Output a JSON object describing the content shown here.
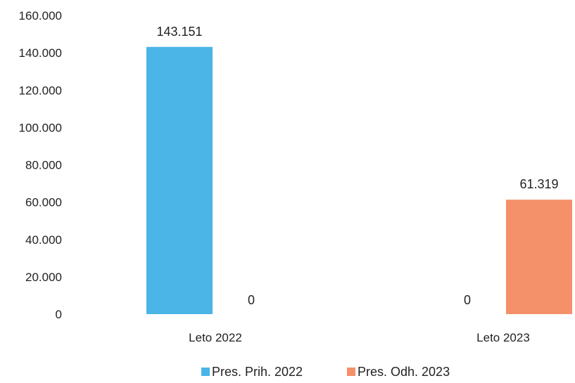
{
  "chart_data": {
    "type": "bar",
    "categories": [
      "Leto 2022",
      "Leto 2023"
    ],
    "series": [
      {
        "name": "Pres. Prih. 2022",
        "values": [
          143151,
          0
        ],
        "labels": [
          "143.151",
          "0"
        ],
        "color": "#4ab5e6"
      },
      {
        "name": "Pres. Odh. 2023",
        "values": [
          0,
          61319
        ],
        "labels": [
          "0",
          "61.319"
        ],
        "color": "#f4906a"
      }
    ],
    "ylim": [
      0,
      160000
    ],
    "yticks": [
      {
        "value": 0,
        "label": "0"
      },
      {
        "value": 20000,
        "label": "20.000"
      },
      {
        "value": 40000,
        "label": "40.000"
      },
      {
        "value": 60000,
        "label": "60.000"
      },
      {
        "value": 80000,
        "label": "80.000"
      },
      {
        "value": 100000,
        "label": "100.000"
      },
      {
        "value": 120000,
        "label": "120.000"
      },
      {
        "value": 140000,
        "label": "140.000"
      },
      {
        "value": 160000,
        "label": "160.000"
      }
    ],
    "grid": false,
    "legend_position": "bottom"
  }
}
